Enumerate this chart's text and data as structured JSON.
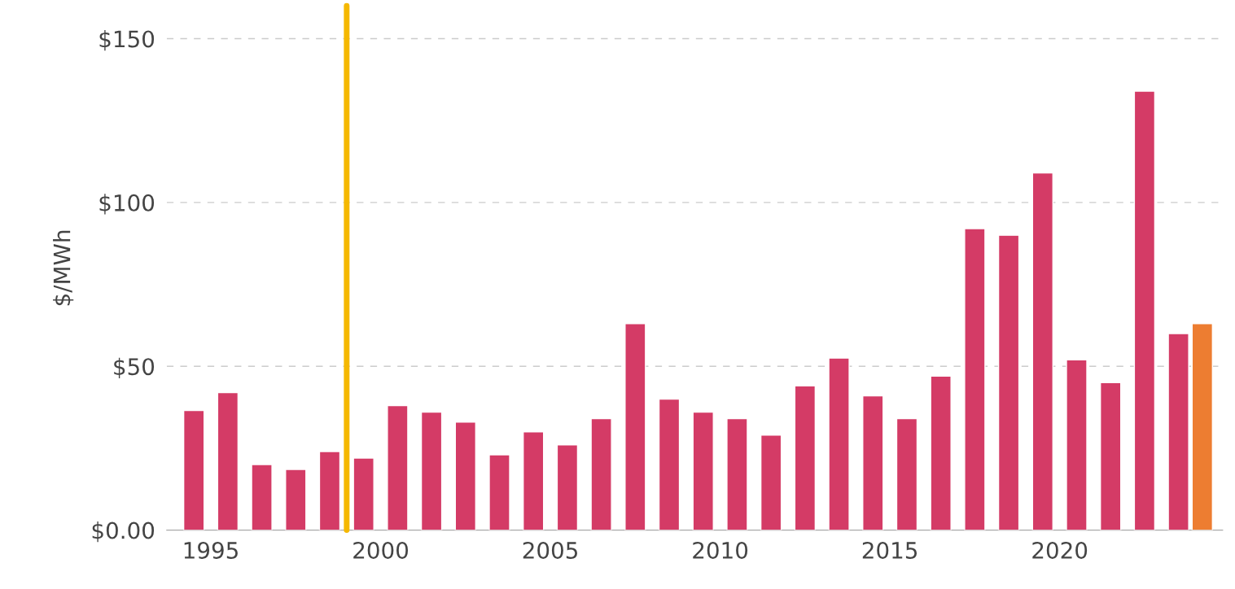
{
  "chart_data": {
    "type": "bar",
    "ylabel": "$/MWh",
    "x": [
      1994.5,
      1995.5,
      1996.5,
      1997.5,
      1998.5,
      1999.5,
      2000.5,
      2001.5,
      2002.5,
      2003.5,
      2004.5,
      2005.5,
      2006.5,
      2007.5,
      2008.5,
      2009.5,
      2010.5,
      2011.5,
      2012.5,
      2013.5,
      2014.5,
      2015.5,
      2016.5,
      2017.5,
      2018.5,
      2019.5,
      2020.5,
      2021.5,
      2022.5,
      2023.5,
      2024.2
    ],
    "values": [
      36.5,
      42,
      20,
      18.5,
      24,
      22,
      38,
      36,
      33,
      23,
      30,
      26,
      34,
      63,
      40,
      36,
      34,
      29,
      44,
      52.5,
      41,
      34,
      47,
      92,
      90,
      109,
      52,
      45,
      134,
      60,
      63
    ],
    "colors": [
      "#d43b66",
      "#d43b66",
      "#d43b66",
      "#d43b66",
      "#d43b66",
      "#d43b66",
      "#d43b66",
      "#d43b66",
      "#d43b66",
      "#d43b66",
      "#d43b66",
      "#d43b66",
      "#d43b66",
      "#d43b66",
      "#d43b66",
      "#d43b66",
      "#d43b66",
      "#d43b66",
      "#d43b66",
      "#d43b66",
      "#d43b66",
      "#d43b66",
      "#d43b66",
      "#d43b66",
      "#d43b66",
      "#d43b66",
      "#d43b66",
      "#d43b66",
      "#d43b66",
      "#d43b66",
      "#ed7d31"
    ],
    "xlim": [
      1993.7,
      2024.8
    ],
    "xticks": [
      1995,
      2000,
      2005,
      2010,
      2015,
      2020
    ],
    "ylim": [
      0,
      160
    ],
    "yticks": [
      {
        "value": 0,
        "label": "$0.00"
      },
      {
        "value": 50,
        "label": "$50"
      },
      {
        "value": 100,
        "label": "$100"
      },
      {
        "value": 150,
        "label": "$150"
      }
    ],
    "grid": "y",
    "ref_lines": [
      {
        "axis": "x",
        "value": 1999,
        "color": "#f5b800"
      }
    ]
  }
}
